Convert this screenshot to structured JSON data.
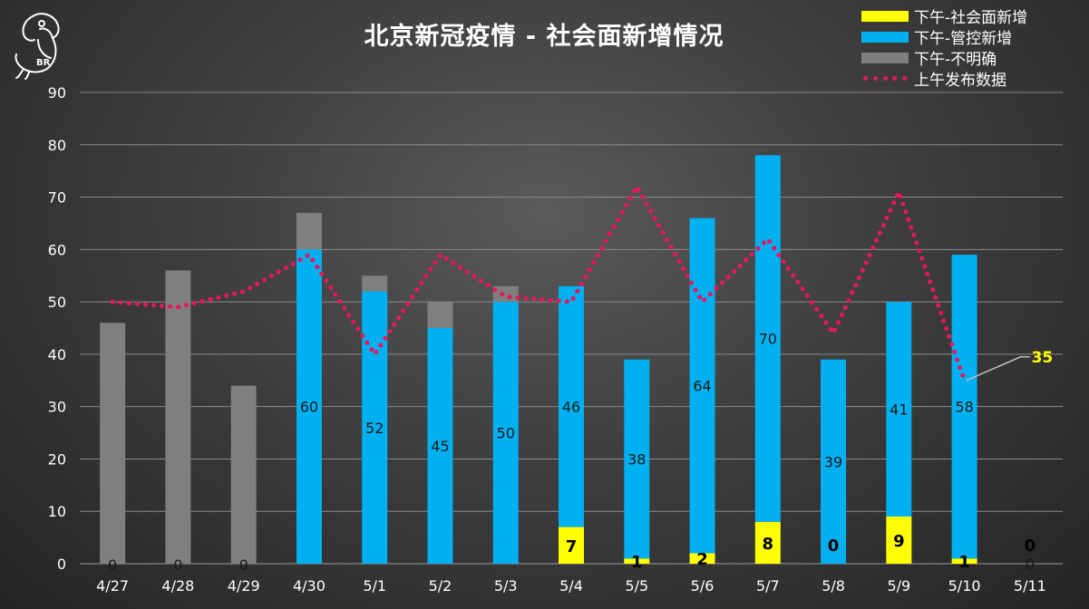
{
  "chart_data": {
    "type": "bar",
    "title": "北京新冠疫情 - 社会面新增情况",
    "categories": [
      "4/27",
      "4/28",
      "4/29",
      "4/30",
      "5/1",
      "5/2",
      "5/3",
      "5/4",
      "5/5",
      "5/6",
      "5/7",
      "5/8",
      "5/9",
      "5/10",
      "5/11"
    ],
    "ylim": [
      0,
      90
    ],
    "yticks": [
      0,
      10,
      20,
      30,
      40,
      50,
      60,
      70,
      80,
      90
    ],
    "stacked": true,
    "series": [
      {
        "name": "下午-社会面新增",
        "type": "bar",
        "color": "#ffff00",
        "values": [
          0,
          0,
          0,
          0,
          0,
          0,
          0,
          7,
          1,
          2,
          8,
          0,
          9,
          1,
          0
        ],
        "labels": [
          "0",
          "0",
          "0",
          "",
          "",
          "",
          "",
          "7",
          "1",
          "2",
          "8",
          "0",
          "9",
          "1",
          "0"
        ]
      },
      {
        "name": "下午-管控新增",
        "type": "bar",
        "color": "#00b0f0",
        "values": [
          0,
          0,
          0,
          60,
          52,
          45,
          50,
          46,
          38,
          64,
          70,
          39,
          41,
          58,
          0
        ],
        "labels": [
          "",
          "",
          "",
          "60",
          "52",
          "45",
          "50",
          "46",
          "38",
          "64",
          "70",
          "39",
          "41",
          "58",
          "0"
        ]
      },
      {
        "name": "下午-不明确",
        "type": "bar",
        "color": "#7f7f7f",
        "values": [
          46,
          56,
          34,
          7,
          3,
          5,
          3,
          0,
          0,
          0,
          0,
          0,
          0,
          0,
          0
        ],
        "labels": []
      },
      {
        "name": "上午发布数据",
        "type": "line",
        "color": "#e8175d",
        "style": "dotted",
        "values": [
          50,
          49,
          52,
          59,
          40,
          59,
          51,
          50,
          72,
          50,
          62,
          44,
          71,
          35,
          null
        ]
      }
    ],
    "annotations": [
      {
        "text": "35",
        "category": "5/10",
        "series": "上午发布数据",
        "color": "#ffff00"
      }
    ],
    "grid": true,
    "legend_position": "top-right"
  },
  "logo": {
    "text": "BR"
  }
}
